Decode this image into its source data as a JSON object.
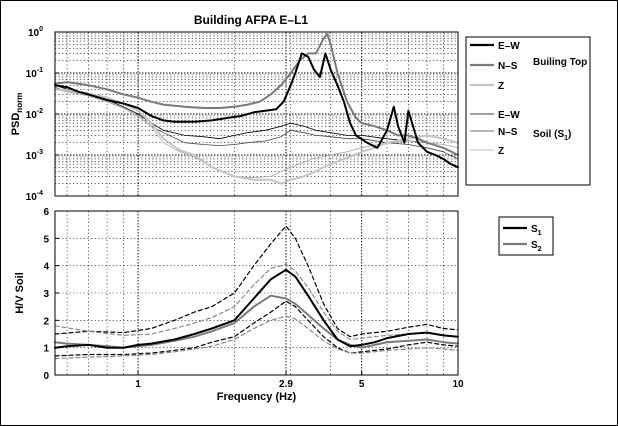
{
  "chart_data": [
    {
      "type": "line",
      "title": "Building AFPA E–L1",
      "xlabel": "",
      "ylabel": "PSD",
      "ylabel_sub": "norm",
      "xscale": "log",
      "yscale": "log",
      "xlim": [
        0.55,
        10
      ],
      "ylim": [
        0.0001,
        1
      ],
      "yticks": [
        "10",
        "10",
        "10",
        "10",
        "10"
      ],
      "ytick_exponents": [
        "-4",
        "-3",
        "-2",
        "-1",
        "0"
      ],
      "grid": true,
      "legend": {
        "placement": "right",
        "entries": [
          {
            "label": "E–W",
            "group": "Builing Top",
            "color": "#000000",
            "width": 2.2
          },
          {
            "label": "N–S",
            "group": "Builing Top",
            "color": "#7a7a7a",
            "width": 2.2
          },
          {
            "label": "Z",
            "group": "Builing Top",
            "color": "#c4c4c4",
            "width": 2.2
          },
          {
            "label": "E–W",
            "group": "Soil (S",
            "color": "#000000",
            "width": 0.8
          },
          {
            "label": "N–S",
            "group": "Soil (S",
            "color": "#444444",
            "width": 0.8
          },
          {
            "label": "Z",
            "group": "Soil (S",
            "color": "#a8a8a8",
            "width": 0.8
          }
        ],
        "group_labels": {
          "top": "Builing Top",
          "soil": "Soil (S",
          "soil_sub": "1",
          "soil_end": ")"
        }
      },
      "series": [
        {
          "name": "E–W",
          "group": "Builing Top",
          "color": "#000000",
          "width": 2.0,
          "x": [
            0.55,
            0.6,
            0.65,
            0.7,
            0.8,
            0.9,
            1.0,
            1.1,
            1.2,
            1.3,
            1.5,
            1.7,
            1.9,
            2.1,
            2.3,
            2.5,
            2.7,
            2.85,
            3.0,
            3.1,
            3.25,
            3.4,
            3.55,
            3.7,
            3.85,
            4.0,
            4.2,
            4.4,
            4.6,
            4.8,
            5.2,
            5.6,
            6.0,
            6.3,
            6.5,
            6.8,
            7.0,
            7.5,
            8.0,
            8.5,
            9.0,
            9.5,
            10.0
          ],
          "y": [
            0.05,
            0.045,
            0.035,
            0.03,
            0.022,
            0.018,
            0.014,
            0.009,
            0.007,
            0.0065,
            0.0065,
            0.007,
            0.008,
            0.009,
            0.011,
            0.012,
            0.013,
            0.02,
            0.05,
            0.1,
            0.3,
            0.25,
            0.12,
            0.08,
            0.3,
            0.12,
            0.05,
            0.02,
            0.006,
            0.003,
            0.002,
            0.0015,
            0.004,
            0.015,
            0.005,
            0.002,
            0.012,
            0.002,
            0.0012,
            0.001,
            0.0008,
            0.0006,
            0.0005
          ]
        },
        {
          "name": "N–S",
          "group": "Builing Top",
          "color": "#7a7a7a",
          "width": 2.0,
          "x": [
            0.55,
            0.6,
            0.7,
            0.8,
            0.9,
            1.0,
            1.1,
            1.2,
            1.4,
            1.6,
            1.8,
            2.0,
            2.2,
            2.4,
            2.6,
            2.8,
            3.0,
            3.2,
            3.4,
            3.6,
            3.8,
            3.9,
            4.0,
            4.2,
            4.5,
            4.8,
            5.0,
            5.5,
            6.0,
            6.5,
            7.0,
            7.5,
            8.0,
            9.0,
            10.0
          ],
          "y": [
            0.055,
            0.06,
            0.05,
            0.04,
            0.03,
            0.025,
            0.02,
            0.017,
            0.015,
            0.014,
            0.014,
            0.015,
            0.017,
            0.02,
            0.03,
            0.05,
            0.1,
            0.2,
            0.3,
            0.3,
            0.7,
            0.9,
            0.5,
            0.1,
            0.02,
            0.008,
            0.006,
            0.005,
            0.004,
            0.003,
            0.003,
            0.0025,
            0.002,
            0.0015,
            0.001
          ]
        },
        {
          "name": "Z",
          "group": "Builing Top",
          "color": "#c4c4c4",
          "width": 2.0,
          "x": [
            0.55,
            0.6,
            0.7,
            0.8,
            0.9,
            1.0,
            1.1,
            1.2,
            1.35,
            1.5,
            1.7,
            2.0,
            2.3,
            2.6,
            2.8,
            3.0,
            3.3,
            3.6,
            3.8,
            4.0,
            4.4,
            5.0,
            5.5,
            6.0,
            7.0,
            8.0,
            9.0,
            10.0
          ],
          "y": [
            0.04,
            0.038,
            0.032,
            0.025,
            0.018,
            0.012,
            0.006,
            0.0025,
            0.0013,
            0.001,
            0.0005,
            0.0003,
            0.00025,
            0.00025,
            0.0002,
            0.00025,
            0.0003,
            0.0004,
            0.0005,
            0.0006,
            0.0008,
            0.0012,
            0.0015,
            0.002,
            0.0025,
            0.003,
            0.0025,
            0.002
          ]
        },
        {
          "name": "E–W",
          "group": "Soil (S₁)",
          "color": "#000000",
          "width": 0.8,
          "x": [
            0.55,
            0.6,
            0.7,
            0.8,
            0.9,
            1.0,
            1.1,
            1.2,
            1.4,
            1.6,
            1.8,
            2.0,
            2.2,
            2.5,
            2.8,
            3.0,
            3.3,
            3.6,
            4.0,
            4.5,
            5.0,
            6.0,
            7.0,
            8.0,
            9.0,
            10.0
          ],
          "y": [
            0.05,
            0.04,
            0.03,
            0.022,
            0.015,
            0.01,
            0.006,
            0.004,
            0.003,
            0.0028,
            0.0025,
            0.003,
            0.0035,
            0.004,
            0.005,
            0.006,
            0.005,
            0.004,
            0.0035,
            0.003,
            0.003,
            0.0025,
            0.0022,
            0.002,
            0.0015,
            0.001
          ]
        },
        {
          "name": "N–S",
          "group": "Soil (S₁)",
          "color": "#444444",
          "width": 0.8,
          "x": [
            0.55,
            0.6,
            0.7,
            0.8,
            0.9,
            1.0,
            1.1,
            1.2,
            1.4,
            1.6,
            1.8,
            2.0,
            2.2,
            2.5,
            2.8,
            3.0,
            3.3,
            3.6,
            4.0,
            4.5,
            5.0,
            6.0,
            7.0,
            8.0,
            9.0,
            10.0
          ],
          "y": [
            0.045,
            0.035,
            0.028,
            0.02,
            0.014,
            0.009,
            0.005,
            0.0035,
            0.002,
            0.0018,
            0.0017,
            0.0018,
            0.002,
            0.0022,
            0.0028,
            0.004,
            0.0035,
            0.003,
            0.0028,
            0.0025,
            0.0025,
            0.002,
            0.0018,
            0.0015,
            0.0012,
            0.0008
          ]
        },
        {
          "name": "Z",
          "group": "Soil (S₁)",
          "color": "#a8a8a8",
          "width": 0.8,
          "x": [
            0.55,
            0.6,
            0.7,
            0.8,
            0.9,
            1.0,
            1.1,
            1.2,
            1.35,
            1.5,
            1.7,
            2.0,
            2.3,
            2.6,
            3.0,
            3.5,
            4.0,
            4.5,
            5.0,
            6.0,
            7.0,
            8.0,
            9.0,
            10.0
          ],
          "y": [
            0.04,
            0.035,
            0.028,
            0.02,
            0.014,
            0.009,
            0.005,
            0.002,
            0.0012,
            0.0009,
            0.0005,
            0.0003,
            0.00028,
            0.0003,
            0.0005,
            0.0008,
            0.001,
            0.0012,
            0.0015,
            0.002,
            0.0022,
            0.002,
            0.0018,
            0.0015
          ]
        }
      ]
    },
    {
      "type": "line",
      "title": "",
      "xlabel": "Frequency (Hz)",
      "ylabel": "H/V Soil",
      "xscale": "log",
      "yscale": "linear",
      "xlim": [
        0.55,
        10
      ],
      "ylim": [
        0,
        6
      ],
      "xticks": [
        1,
        2.9,
        5,
        10
      ],
      "xtick_labels": [
        "1",
        "2.9",
        "5",
        "10"
      ],
      "yticks": [
        0,
        1,
        2,
        3,
        4,
        5,
        6
      ],
      "grid": true,
      "legend": {
        "placement": "right",
        "entries": [
          {
            "label": "S",
            "sub": "1",
            "color": "#000000"
          },
          {
            "label": "S",
            "sub": "2",
            "color": "#7a7a7a"
          }
        ]
      },
      "series": [
        {
          "name": "S₁",
          "role": "mean",
          "color": "#000000",
          "width": 2.0,
          "dash": "",
          "x": [
            0.55,
            0.6,
            0.7,
            0.8,
            0.9,
            1.0,
            1.1,
            1.3,
            1.5,
            1.7,
            2.0,
            2.3,
            2.6,
            2.9,
            3.1,
            3.4,
            3.8,
            4.2,
            4.6,
            5.0,
            5.5,
            6.0,
            7.0,
            8.0,
            9.0,
            10.0
          ],
          "y": [
            1.0,
            1.05,
            1.1,
            1.0,
            1.0,
            1.1,
            1.15,
            1.3,
            1.5,
            1.7,
            2.0,
            2.8,
            3.5,
            3.85,
            3.6,
            2.9,
            2.0,
            1.3,
            1.05,
            1.1,
            1.2,
            1.35,
            1.5,
            1.55,
            1.45,
            1.4
          ]
        },
        {
          "name": "S₂",
          "role": "mean",
          "color": "#7a7a7a",
          "width": 2.0,
          "dash": "",
          "x": [
            0.55,
            0.6,
            0.7,
            0.8,
            0.9,
            1.0,
            1.1,
            1.3,
            1.5,
            1.7,
            2.0,
            2.3,
            2.6,
            2.9,
            3.1,
            3.4,
            3.8,
            4.2,
            4.6,
            5.0,
            5.5,
            6.0,
            7.0,
            8.0,
            9.0,
            10.0
          ],
          "y": [
            1.2,
            1.15,
            1.1,
            1.05,
            1.0,
            1.05,
            1.1,
            1.25,
            1.4,
            1.6,
            1.9,
            2.5,
            2.9,
            2.8,
            2.6,
            2.2,
            1.7,
            1.3,
            1.1,
            1.0,
            1.1,
            1.2,
            1.25,
            1.3,
            1.2,
            1.15
          ]
        },
        {
          "name": "S₁",
          "role": "upper",
          "color": "#000000",
          "width": 1.2,
          "dash": "4 3",
          "x": [
            0.55,
            0.7,
            0.9,
            1.1,
            1.3,
            1.5,
            1.7,
            2.0,
            2.3,
            2.6,
            2.9,
            3.1,
            3.4,
            3.8,
            4.2,
            4.6,
            5.0,
            6.0,
            7.0,
            8.0,
            9.0,
            10.0
          ],
          "y": [
            1.5,
            1.6,
            1.55,
            1.7,
            2.0,
            2.3,
            2.5,
            3.0,
            4.0,
            4.8,
            5.45,
            5.0,
            4.0,
            2.6,
            1.7,
            1.4,
            1.5,
            1.6,
            1.75,
            1.85,
            1.7,
            1.65
          ]
        },
        {
          "name": "S₁",
          "role": "lower",
          "color": "#000000",
          "width": 1.2,
          "dash": "4 3",
          "x": [
            0.55,
            0.7,
            0.9,
            1.1,
            1.3,
            1.5,
            1.7,
            2.0,
            2.3,
            2.6,
            2.9,
            3.1,
            3.4,
            3.8,
            4.2,
            4.6,
            5.0,
            6.0,
            7.0,
            8.0,
            9.0,
            10.0
          ],
          "y": [
            0.7,
            0.75,
            0.75,
            0.8,
            0.9,
            1.0,
            1.2,
            1.4,
            1.9,
            2.3,
            2.7,
            2.5,
            2.0,
            1.4,
            1.0,
            0.8,
            0.85,
            0.95,
            1.1,
            1.2,
            1.1,
            1.05
          ]
        },
        {
          "name": "S₂",
          "role": "upper",
          "color": "#8a8a8a",
          "width": 1.2,
          "dash": "4 3",
          "x": [
            0.55,
            0.7,
            0.9,
            1.1,
            1.3,
            1.5,
            1.7,
            2.0,
            2.3,
            2.6,
            2.9,
            3.1,
            3.4,
            3.8,
            4.2,
            4.6,
            5.0,
            6.0,
            7.0,
            8.0,
            9.0,
            10.0
          ],
          "y": [
            1.8,
            1.6,
            1.45,
            1.5,
            1.7,
            1.9,
            2.1,
            2.5,
            3.3,
            3.9,
            4.05,
            3.8,
            3.2,
            2.3,
            1.6,
            1.3,
            1.35,
            1.45,
            1.5,
            1.55,
            1.45,
            1.4
          ]
        },
        {
          "name": "S₂",
          "role": "lower",
          "color": "#8a8a8a",
          "width": 1.2,
          "dash": "4 3",
          "x": [
            0.55,
            0.7,
            0.9,
            1.1,
            1.3,
            1.5,
            1.7,
            2.0,
            2.3,
            2.6,
            2.9,
            3.1,
            3.4,
            3.8,
            4.2,
            4.6,
            5.0,
            6.0,
            7.0,
            8.0,
            9.0,
            10.0
          ],
          "y": [
            0.6,
            0.65,
            0.7,
            0.75,
            0.85,
            0.95,
            1.05,
            1.3,
            1.7,
            2.0,
            2.15,
            2.05,
            1.7,
            1.25,
            0.95,
            0.8,
            0.8,
            0.9,
            0.95,
            1.0,
            0.95,
            0.9
          ]
        }
      ]
    }
  ]
}
